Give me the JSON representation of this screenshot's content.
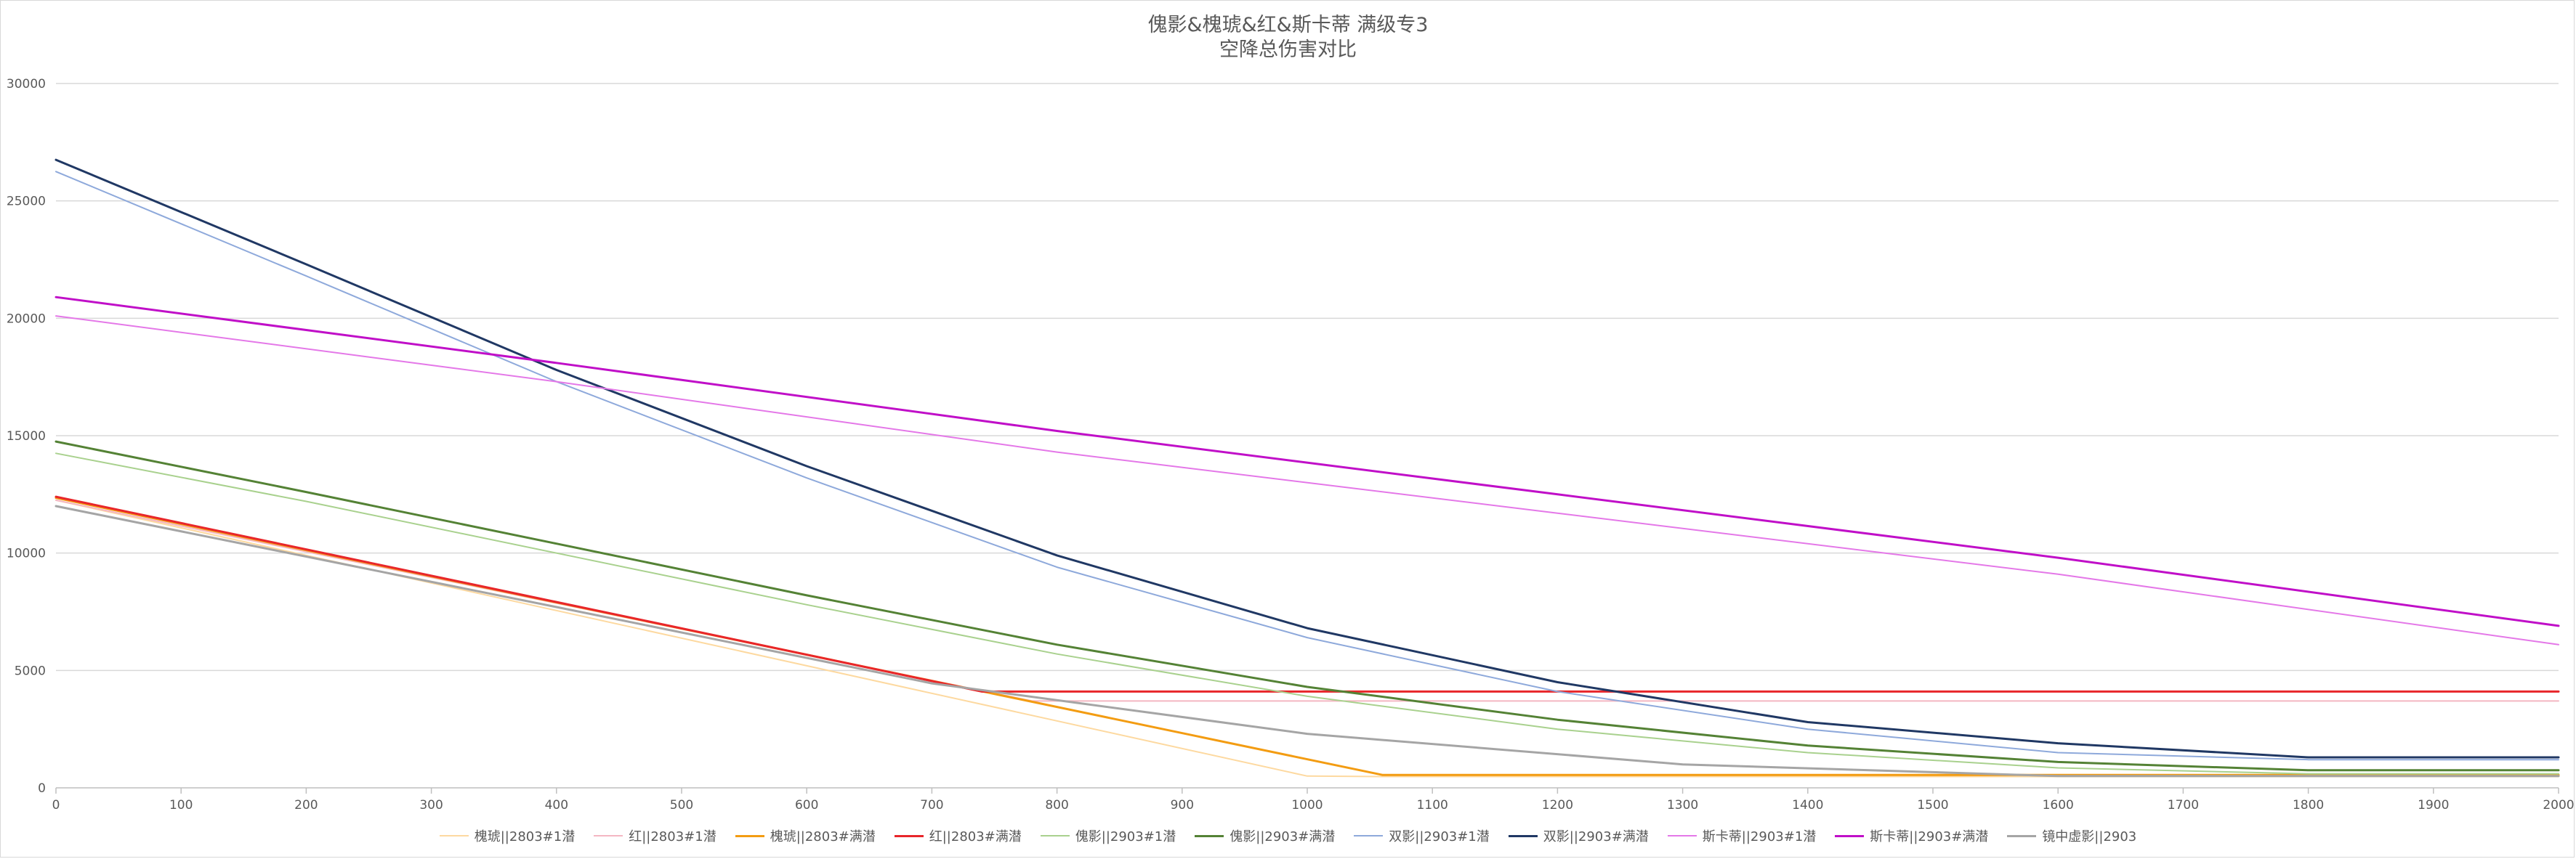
{
  "chart_data": {
    "type": "line",
    "title": "傀影&槐琥&红&斯卡蒂 满级专3",
    "subtitle": "空降总伤害对比",
    "xlabel": "",
    "ylabel": "",
    "xlim": [
      0,
      2000
    ],
    "ylim": [
      0,
      30000
    ],
    "x_ticks": [
      "0",
      "100",
      "200",
      "300",
      "400",
      "500",
      "600",
      "700",
      "800",
      "900",
      "1000",
      "1100",
      "1200",
      "1300",
      "1400",
      "1500",
      "1600",
      "1700",
      "1800",
      "1900",
      "2000"
    ],
    "y_ticks": [
      "0",
      "5000",
      "10000",
      "15000",
      "20000",
      "25000",
      "30000"
    ],
    "grid": "horizontal",
    "legend_position": "bottom",
    "series": [
      {
        "name": "槐琥||2803#1潜",
        "color": "#fdd9a0",
        "width": 2,
        "x": [
          0,
          1000,
          1060,
          2000
        ],
        "y": [
          12250,
          500,
          480,
          480
        ]
      },
      {
        "name": "红||2803#1潜",
        "color": "#f4b6c2",
        "width": 2,
        "x": [
          0,
          780,
          2000
        ],
        "y": [
          12250,
          3700,
          3700
        ]
      },
      {
        "name": "槐琥||2803#满潜",
        "color": "#f39c12",
        "width": 3,
        "x": [
          0,
          1060,
          2000
        ],
        "y": [
          12350,
          550,
          550
        ]
      },
      {
        "name": "红||2803#满潜",
        "color": "#e8262a",
        "width": 3,
        "x": [
          0,
          740,
          2000
        ],
        "y": [
          12400,
          4100,
          4100
        ]
      },
      {
        "name": "傀影||2903#1潜",
        "color": "#a9d18e",
        "width": 2,
        "x": [
          0,
          200,
          400,
          600,
          800,
          1000,
          1200,
          1400,
          1600,
          1800,
          2000
        ],
        "y": [
          14250,
          12200,
          10000,
          7800,
          5700,
          3900,
          2500,
          1500,
          850,
          600,
          600
        ]
      },
      {
        "name": "傀影||2903#满潜",
        "color": "#548235",
        "width": 3,
        "x": [
          0,
          200,
          400,
          600,
          800,
          1000,
          1200,
          1400,
          1600,
          1800,
          2000
        ],
        "y": [
          14750,
          12600,
          10400,
          8200,
          6100,
          4300,
          2900,
          1800,
          1100,
          750,
          750
        ]
      },
      {
        "name": "双影||2903#1潜",
        "color": "#8ea9db",
        "width": 2,
        "x": [
          0,
          200,
          400,
          600,
          800,
          1000,
          1200,
          1400,
          1600,
          1800,
          2000
        ],
        "y": [
          26250,
          21800,
          17300,
          13200,
          9400,
          6400,
          4100,
          2500,
          1500,
          1200,
          1200
        ]
      },
      {
        "name": "双影||2903#满潜",
        "color": "#203864",
        "width": 3,
        "x": [
          0,
          200,
          400,
          600,
          800,
          1000,
          1200,
          1400,
          1600,
          1800,
          2000
        ],
        "y": [
          26750,
          22300,
          17800,
          13700,
          9900,
          6800,
          4500,
          2800,
          1900,
          1300,
          1300
        ]
      },
      {
        "name": "斯卡蒂||2903#1潜",
        "color": "#e478e8",
        "width": 2,
        "x": [
          0,
          400,
          800,
          1200,
          1600,
          2000
        ],
        "y": [
          20100,
          17300,
          14300,
          11700,
          9100,
          6100
        ]
      },
      {
        "name": "斯卡蒂||2903#满潜",
        "color": "#c00fc8",
        "width": 3,
        "x": [
          0,
          400,
          800,
          1200,
          1600,
          2000
        ],
        "y": [
          20900,
          18100,
          15200,
          12500,
          9800,
          6900
        ]
      },
      {
        "name": "镜中虚影||2903",
        "color": "#a5a5a5",
        "width": 3,
        "x": [
          0,
          400,
          700,
          1000,
          1300,
          1600,
          2000
        ],
        "y": [
          12000,
          7700,
          4450,
          2300,
          1000,
          500,
          500
        ]
      }
    ]
  }
}
